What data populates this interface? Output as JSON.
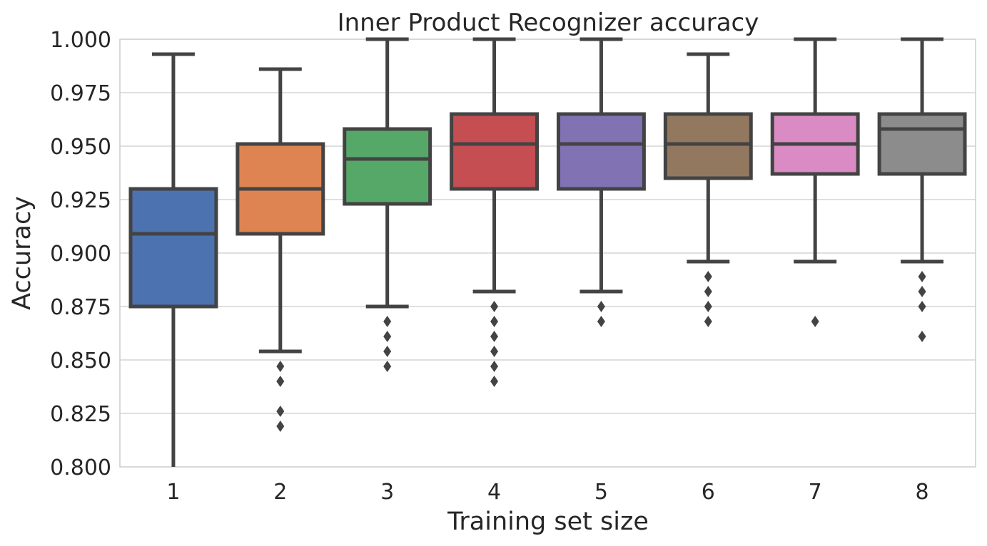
{
  "chart_data": {
    "type": "box",
    "title": "Inner Product Recognizer accuracy",
    "xlabel": "Training set size",
    "ylabel": "Accuracy",
    "ylim": [
      0.8,
      1.0
    ],
    "yticks": [
      "0.800",
      "0.825",
      "0.850",
      "0.875",
      "0.900",
      "0.925",
      "0.950",
      "0.975",
      "1.000"
    ],
    "ytick_values": [
      0.8,
      0.825,
      0.85,
      0.875,
      0.9,
      0.925,
      0.95,
      0.975,
      1.0
    ],
    "grid": "horizontal",
    "categories": [
      "1",
      "2",
      "3",
      "4",
      "5",
      "6",
      "7",
      "8"
    ],
    "boxes": [
      {
        "category": "1",
        "color": "#4c72b0",
        "whisker_low": 0.8,
        "q1": 0.875,
        "median": 0.909,
        "q3": 0.93,
        "whisker_high": 0.993,
        "fliers": []
      },
      {
        "category": "2",
        "color": "#dd8452",
        "whisker_low": 0.854,
        "q1": 0.909,
        "median": 0.93,
        "q3": 0.951,
        "whisker_high": 0.986,
        "fliers": [
          0.847,
          0.84,
          0.826,
          0.819
        ]
      },
      {
        "category": "3",
        "color": "#55a868",
        "whisker_low": 0.875,
        "q1": 0.923,
        "median": 0.944,
        "q3": 0.958,
        "whisker_high": 1.0,
        "fliers": [
          0.868,
          0.861,
          0.854,
          0.847
        ]
      },
      {
        "category": "4",
        "color": "#c44e52",
        "whisker_low": 0.882,
        "q1": 0.93,
        "median": 0.951,
        "q3": 0.965,
        "whisker_high": 1.0,
        "fliers": [
          0.875,
          0.868,
          0.861,
          0.854,
          0.847,
          0.84
        ]
      },
      {
        "category": "5",
        "color": "#8172b3",
        "whisker_low": 0.882,
        "q1": 0.93,
        "median": 0.951,
        "q3": 0.965,
        "whisker_high": 1.0,
        "fliers": [
          0.875,
          0.868
        ]
      },
      {
        "category": "6",
        "color": "#937860",
        "whisker_low": 0.896,
        "q1": 0.935,
        "median": 0.951,
        "q3": 0.965,
        "whisker_high": 0.993,
        "fliers": [
          0.889,
          0.882,
          0.875,
          0.868
        ]
      },
      {
        "category": "7",
        "color": "#da8bc3",
        "whisker_low": 0.896,
        "q1": 0.937,
        "median": 0.951,
        "q3": 0.965,
        "whisker_high": 1.0,
        "fliers": [
          0.868
        ]
      },
      {
        "category": "8",
        "color": "#8c8c8c",
        "whisker_low": 0.896,
        "q1": 0.937,
        "median": 0.958,
        "q3": 0.965,
        "whisker_high": 1.0,
        "fliers": [
          0.889,
          0.882,
          0.875,
          0.861
        ]
      }
    ]
  }
}
